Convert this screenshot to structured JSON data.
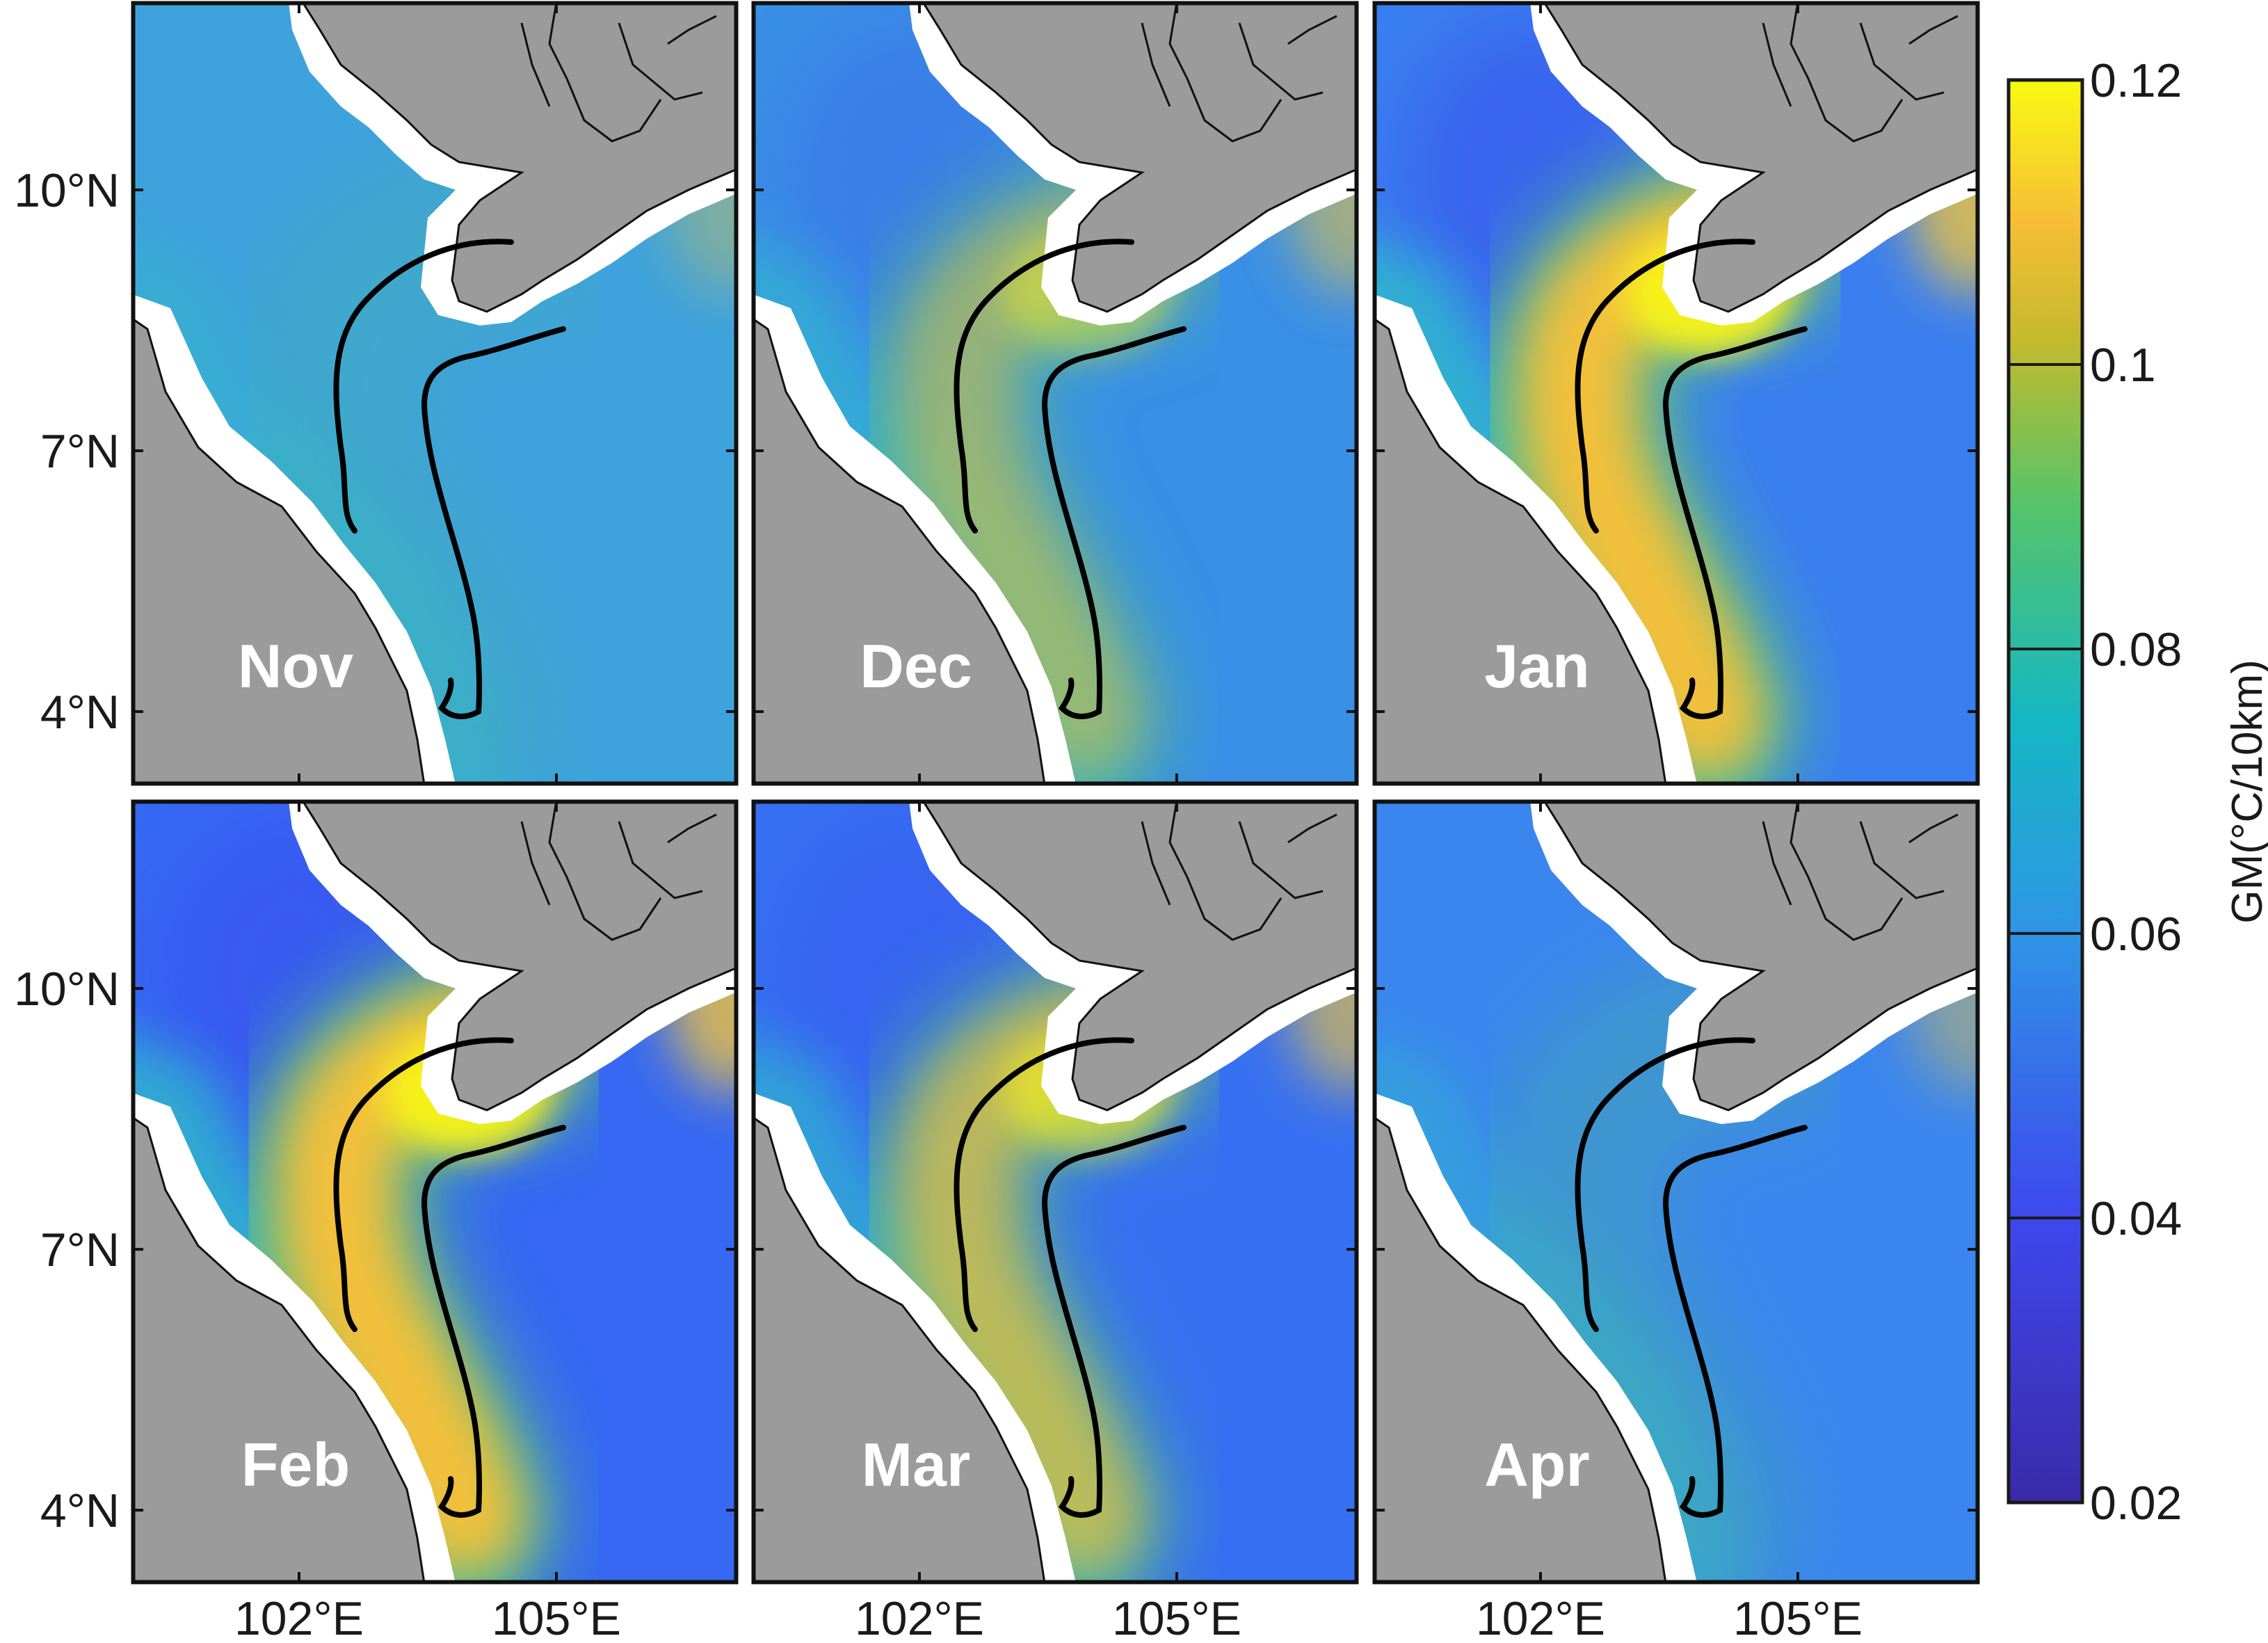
{
  "figure": {
    "panels": [
      {
        "month": "Nov",
        "intensity": 0.0,
        "base": "#3ea2dc"
      },
      {
        "month": "Dec",
        "intensity": 0.45,
        "base": "#3a8fe6"
      },
      {
        "month": "Jan",
        "intensity": 1.0,
        "base": "#3a7ff0"
      },
      {
        "month": "Feb",
        "intensity": 1.0,
        "base": "#3668f3"
      },
      {
        "month": "Mar",
        "intensity": 0.65,
        "base": "#3670f2"
      },
      {
        "month": "Apr",
        "intensity": 0.15,
        "base": "#3a86ee"
      }
    ],
    "lat_ticks": [
      "10°N",
      "7°N",
      "4°N"
    ],
    "lon_ticks": [
      "102°E",
      "105°E"
    ],
    "colorbar": {
      "title": "GM(°C/10km)",
      "ticks": [
        "0.12",
        "0.1",
        "0.08",
        "0.06",
        "0.04",
        "0.02"
      ],
      "range": [
        0.02,
        0.12
      ]
    },
    "colors": {
      "land": "#9b9b9b",
      "coast_gap": "#ffffff",
      "path": "#000000"
    }
  }
}
